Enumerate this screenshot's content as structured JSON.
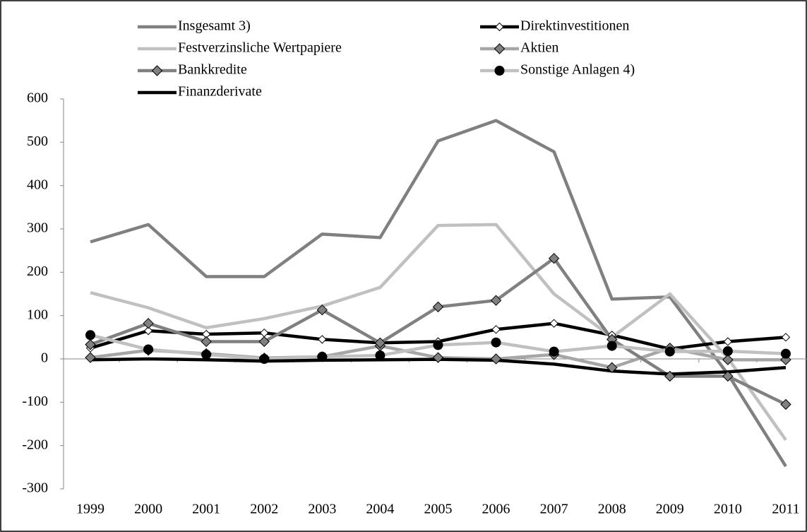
{
  "chart_data": {
    "type": "line",
    "categories": [
      "1999",
      "2000",
      "2001",
      "2002",
      "2003",
      "2004",
      "2005",
      "2006",
      "2007",
      "2008",
      "2009",
      "2010",
      "2011"
    ],
    "ylim": [
      -300,
      600
    ],
    "yticks": [
      -300,
      -200,
      -100,
      0,
      100,
      200,
      300,
      400,
      500,
      600
    ],
    "series": [
      {
        "name": "Insgesamt 3)",
        "color": "#808080",
        "marker": "none",
        "values": [
          270,
          310,
          190,
          190,
          288,
          280,
          503,
          550,
          478,
          138,
          143,
          -35,
          -248
        ]
      },
      {
        "name": "Direktinvestitionen",
        "color": "#000000",
        "marker": "diamond-open",
        "marker_color": "#ffffff",
        "values": [
          25,
          65,
          57,
          60,
          45,
          37,
          40,
          68,
          82,
          55,
          23,
          40,
          50
        ]
      },
      {
        "name": "Festverzinsliche Wertpapiere",
        "color": "#c0c0c0",
        "marker": "none",
        "values": [
          153,
          118,
          72,
          93,
          122,
          165,
          308,
          310,
          150,
          50,
          150,
          2,
          -187
        ]
      },
      {
        "name": "Aktien",
        "color": "#a6a6a6",
        "marker": "diamond",
        "marker_color": "#808080",
        "values": [
          3,
          20,
          12,
          2,
          5,
          30,
          3,
          0,
          10,
          -20,
          25,
          -2,
          -2
        ]
      },
      {
        "name": "Bankkredite",
        "color": "#808080",
        "marker": "diamond",
        "marker_color": "#808080",
        "values": [
          33,
          82,
          40,
          40,
          113,
          37,
          120,
          135,
          232,
          45,
          -40,
          -40,
          -105
        ]
      },
      {
        "name": "Sonstige Anlagen 4)",
        "color": "#c0c0c0",
        "marker": "circle",
        "marker_color": "#000000",
        "values": [
          55,
          22,
          10,
          0,
          5,
          8,
          32,
          38,
          17,
          30,
          17,
          18,
          12
        ]
      },
      {
        "name": "Finanzderivate",
        "color": "#000000",
        "marker": "none",
        "values": [
          -2,
          0,
          -2,
          -5,
          -3,
          -2,
          -1,
          -3,
          -12,
          -28,
          -35,
          -30,
          -20
        ]
      }
    ]
  }
}
